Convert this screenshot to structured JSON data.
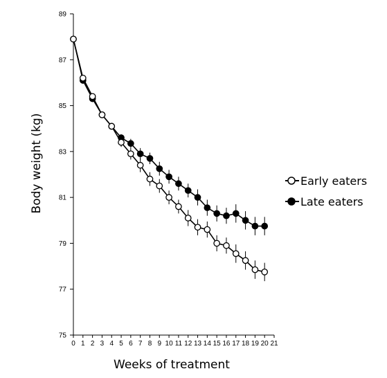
{
  "chart_data": {
    "type": "line",
    "title": "",
    "xlabel": "Weeks of treatment",
    "ylabel": "Body weight (kg)",
    "xlim": [
      0,
      21
    ],
    "ylim": [
      75,
      89
    ],
    "x_ticks": [
      0,
      1,
      2,
      3,
      4,
      5,
      6,
      7,
      8,
      9,
      10,
      11,
      12,
      13,
      14,
      15,
      16,
      17,
      18,
      19,
      20,
      21
    ],
    "y_ticks": [
      75,
      77,
      79,
      81,
      83,
      85,
      87,
      89
    ],
    "grid": false,
    "legend_position": "right",
    "series": [
      {
        "name": "Early eaters",
        "marker": "open-circle",
        "color": "#000000",
        "x": [
          0,
          1,
          2,
          3,
          4,
          5,
          6,
          7,
          8,
          9,
          10,
          11,
          12,
          13,
          14,
          15,
          16,
          17,
          18,
          19,
          20
        ],
        "values": [
          87.9,
          86.2,
          85.4,
          84.6,
          84.1,
          83.4,
          82.9,
          82.4,
          81.8,
          81.5,
          81.0,
          80.6,
          80.1,
          79.7,
          79.6,
          79.0,
          78.9,
          78.55,
          78.25,
          77.85,
          77.75
        ],
        "error": [
          0,
          0,
          0,
          0,
          0,
          0.2,
          0.25,
          0.3,
          0.3,
          0.3,
          0.3,
          0.3,
          0.35,
          0.35,
          0.35,
          0.35,
          0.35,
          0.4,
          0.4,
          0.4,
          0.4
        ]
      },
      {
        "name": "Late eaters",
        "marker": "filled-circle",
        "color": "#000000",
        "x": [
          0,
          1,
          2,
          3,
          4,
          5,
          6,
          7,
          8,
          9,
          10,
          11,
          12,
          13,
          14,
          15,
          16,
          17,
          18,
          19,
          20
        ],
        "values": [
          87.9,
          86.1,
          85.3,
          84.6,
          84.1,
          83.6,
          83.35,
          82.9,
          82.7,
          82.25,
          81.9,
          81.6,
          81.3,
          81.0,
          80.55,
          80.3,
          80.2,
          80.3,
          80.0,
          79.75,
          79.75
        ],
        "error": [
          0,
          0,
          0,
          0,
          0,
          0.15,
          0.2,
          0.25,
          0.25,
          0.3,
          0.3,
          0.3,
          0.3,
          0.35,
          0.35,
          0.35,
          0.35,
          0.4,
          0.4,
          0.4,
          0.4
        ]
      }
    ]
  }
}
